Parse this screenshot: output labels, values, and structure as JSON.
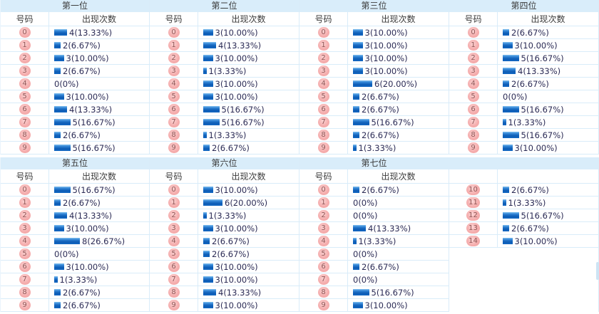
{
  "labels": {
    "number_col": "号码",
    "count_col": "出现次数"
  },
  "colors": {
    "band": "#d9edfa",
    "border": "#d9ecf9",
    "title-text": "#3c3c3c",
    "header-text": "#3c3c3c",
    "value-text": "#2b2b55",
    "bar-top": "#7fc0ef",
    "bar-mid": "#2d80d3",
    "bar-deep": "#0d5cb5",
    "bar-bottom": "#1268c3",
    "ball-light": "#fcd3d3",
    "ball-pink": "#f5aeae",
    "ball-edge": "#f09e9e",
    "ball-text": "#8f5656",
    "scrollbar": "#cde4f4"
  },
  "sections": [
    {
      "title": "第一位",
      "col_number": "号码",
      "col_count": "出现次数",
      "rows": [
        {
          "num": "0",
          "count": 4,
          "label": "4(13.33%)"
        },
        {
          "num": "1",
          "count": 2,
          "label": "2(6.67%)"
        },
        {
          "num": "2",
          "count": 3,
          "label": "3(10.00%)"
        },
        {
          "num": "3",
          "count": 2,
          "label": "2(6.67%)"
        },
        {
          "num": "4",
          "count": 0,
          "label": "0(0%)"
        },
        {
          "num": "5",
          "count": 3,
          "label": "3(10.00%)"
        },
        {
          "num": "6",
          "count": 4,
          "label": "4(13.33%)"
        },
        {
          "num": "7",
          "count": 5,
          "label": "5(16.67%)"
        },
        {
          "num": "8",
          "count": 2,
          "label": "2(6.67%)"
        },
        {
          "num": "9",
          "count": 5,
          "label": "5(16.67%)"
        }
      ]
    },
    {
      "title": "第二位",
      "col_number": "号码",
      "col_count": "出现次数",
      "rows": [
        {
          "num": "0",
          "count": 3,
          "label": "3(10.00%)"
        },
        {
          "num": "1",
          "count": 4,
          "label": "4(13.33%)"
        },
        {
          "num": "2",
          "count": 3,
          "label": "3(10.00%)"
        },
        {
          "num": "3",
          "count": 1,
          "label": "1(3.33%)"
        },
        {
          "num": "4",
          "count": 3,
          "label": "3(10.00%)"
        },
        {
          "num": "5",
          "count": 3,
          "label": "3(10.00%)"
        },
        {
          "num": "6",
          "count": 5,
          "label": "5(16.67%)"
        },
        {
          "num": "7",
          "count": 5,
          "label": "5(16.67%)"
        },
        {
          "num": "8",
          "count": 1,
          "label": "1(3.33%)"
        },
        {
          "num": "9",
          "count": 2,
          "label": "2(6.67%)"
        }
      ]
    },
    {
      "title": "第三位",
      "col_number": "号码",
      "col_count": "出现次数",
      "rows": [
        {
          "num": "0",
          "count": 3,
          "label": "3(10.00%)"
        },
        {
          "num": "1",
          "count": 3,
          "label": "3(10.00%)"
        },
        {
          "num": "2",
          "count": 3,
          "label": "3(10.00%)"
        },
        {
          "num": "3",
          "count": 3,
          "label": "3(10.00%)"
        },
        {
          "num": "4",
          "count": 6,
          "label": "6(20.00%)"
        },
        {
          "num": "5",
          "count": 2,
          "label": "2(6.67%)"
        },
        {
          "num": "6",
          "count": 2,
          "label": "2(6.67%)"
        },
        {
          "num": "7",
          "count": 5,
          "label": "5(16.67%)"
        },
        {
          "num": "8",
          "count": 2,
          "label": "2(6.67%)"
        },
        {
          "num": "9",
          "count": 1,
          "label": "1(3.33%)"
        }
      ]
    },
    {
      "title": "第四位",
      "col_number": "号码",
      "col_count": "出现次数",
      "rows": [
        {
          "num": "0",
          "count": 2,
          "label": "2(6.67%)"
        },
        {
          "num": "1",
          "count": 3,
          "label": "3(10.00%)"
        },
        {
          "num": "2",
          "count": 5,
          "label": "5(16.67%)"
        },
        {
          "num": "3",
          "count": 4,
          "label": "4(13.33%)"
        },
        {
          "num": "4",
          "count": 2,
          "label": "2(6.67%)"
        },
        {
          "num": "5",
          "count": 0,
          "label": "0(0%)"
        },
        {
          "num": "6",
          "count": 5,
          "label": "5(16.67%)"
        },
        {
          "num": "7",
          "count": 1,
          "label": "1(3.33%)"
        },
        {
          "num": "8",
          "count": 5,
          "label": "5(16.67%)"
        },
        {
          "num": "9",
          "count": 3,
          "label": "3(10.00%)"
        }
      ]
    },
    {
      "title": "第五位",
      "col_number": "号码",
      "col_count": "出现次数",
      "rows": [
        {
          "num": "0",
          "count": 5,
          "label": "5(16.67%)"
        },
        {
          "num": "1",
          "count": 2,
          "label": "2(6.67%)"
        },
        {
          "num": "2",
          "count": 4,
          "label": "4(13.33%)"
        },
        {
          "num": "3",
          "count": 3,
          "label": "3(10.00%)"
        },
        {
          "num": "4",
          "count": 8,
          "label": "8(26.67%)"
        },
        {
          "num": "5",
          "count": 0,
          "label": "0(0%)"
        },
        {
          "num": "6",
          "count": 3,
          "label": "3(10.00%)"
        },
        {
          "num": "7",
          "count": 1,
          "label": "1(3.33%)"
        },
        {
          "num": "8",
          "count": 2,
          "label": "2(6.67%)"
        },
        {
          "num": "9",
          "count": 2,
          "label": "2(6.67%)"
        }
      ]
    },
    {
      "title": "第六位",
      "col_number": "号码",
      "col_count": "出现次数",
      "rows": [
        {
          "num": "0",
          "count": 3,
          "label": "3(10.00%)"
        },
        {
          "num": "1",
          "count": 6,
          "label": "6(20.00%)"
        },
        {
          "num": "2",
          "count": 1,
          "label": "1(3.33%)"
        },
        {
          "num": "3",
          "count": 3,
          "label": "3(10.00%)"
        },
        {
          "num": "4",
          "count": 2,
          "label": "2(6.67%)"
        },
        {
          "num": "5",
          "count": 2,
          "label": "2(6.67%)"
        },
        {
          "num": "6",
          "count": 3,
          "label": "3(10.00%)"
        },
        {
          "num": "7",
          "count": 3,
          "label": "3(10.00%)"
        },
        {
          "num": "8",
          "count": 4,
          "label": "4(13.33%)"
        },
        {
          "num": "9",
          "count": 3,
          "label": "3(10.00%)"
        }
      ]
    },
    {
      "title": "第七位",
      "col_number": "号码",
      "col_count": "出现次数",
      "rows": [
        {
          "num": "0",
          "count": 2,
          "label": "2(6.67%)"
        },
        {
          "num": "1",
          "count": 0,
          "label": "0(0%)"
        },
        {
          "num": "2",
          "count": 0,
          "label": "0(0%)"
        },
        {
          "num": "3",
          "count": 4,
          "label": "4(13.33%)"
        },
        {
          "num": "4",
          "count": 1,
          "label": "1(3.33%)"
        },
        {
          "num": "5",
          "count": 0,
          "label": "0(0%)"
        },
        {
          "num": "6",
          "count": 2,
          "label": "2(6.67%)"
        },
        {
          "num": "7",
          "count": 0,
          "label": "0(0%)"
        },
        {
          "num": "8",
          "count": 5,
          "label": "5(16.67%)"
        },
        {
          "num": "9",
          "count": 3,
          "label": "3(10.00%)"
        }
      ]
    },
    {
      "title": "",
      "col_number": "",
      "col_count": "",
      "rows": [
        {
          "num": "10",
          "count": 2,
          "label": "2(6.67%)"
        },
        {
          "num": "11",
          "count": 1,
          "label": "1(3.33%)"
        },
        {
          "num": "12",
          "count": 5,
          "label": "5(16.67%)"
        },
        {
          "num": "13",
          "count": 2,
          "label": "2(6.67%)"
        },
        {
          "num": "14",
          "count": 3,
          "label": "3(10.00%)"
        }
      ]
    }
  ]
}
